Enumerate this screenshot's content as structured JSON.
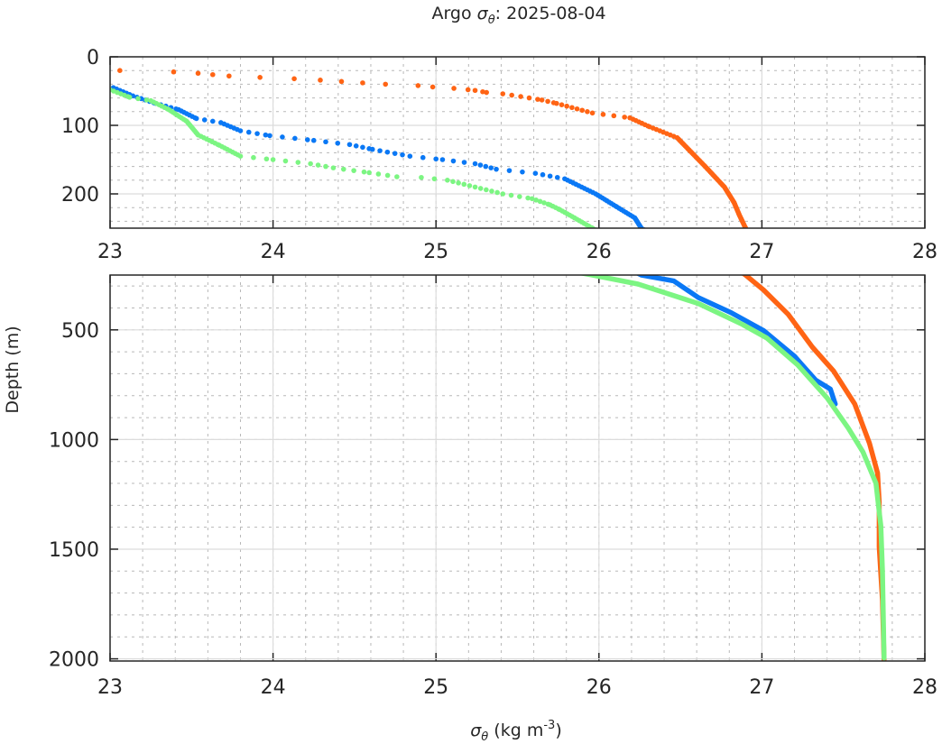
{
  "chart_data": {
    "type": "scatter",
    "title": {
      "prefix": "Argo ",
      "symbol": "σ",
      "subscript": "θ",
      "suffix": ": 2025-08-04"
    },
    "xlabel": {
      "symbol": "σ",
      "subscript": "θ",
      "units": " (kg m",
      "exp": "-3",
      "close": ")"
    },
    "ylabel": "Depth (m)",
    "grid": true,
    "minor_grid": true,
    "panels": [
      {
        "name": "upper",
        "xlim": [
          23,
          28
        ],
        "ylim": [
          0,
          250
        ],
        "y_reversed": true,
        "xticks": [
          23,
          24,
          25,
          26,
          27,
          28
        ],
        "yticks": [
          0,
          100,
          200
        ],
        "marker": "dots"
      },
      {
        "name": "lower",
        "xlim": [
          23,
          28
        ],
        "ylim": [
          250,
          2010
        ],
        "y_reversed": true,
        "xticks": [
          23,
          24,
          25,
          26,
          27,
          28
        ],
        "yticks": [
          500,
          1000,
          1500,
          2000
        ],
        "marker": "line"
      }
    ],
    "series": [
      {
        "color": "#ff6414",
        "points": [
          [
            23.06,
            20
          ],
          [
            23.39,
            22
          ],
          [
            23.54,
            24
          ],
          [
            23.63,
            26
          ],
          [
            23.73,
            28
          ],
          [
            23.92,
            30
          ],
          [
            24.13,
            32
          ],
          [
            24.29,
            34
          ],
          [
            24.42,
            36
          ],
          [
            24.55,
            38
          ],
          [
            24.69,
            40
          ],
          [
            24.89,
            42
          ],
          [
            24.98,
            44
          ],
          [
            25.11,
            46
          ],
          [
            25.24,
            49
          ],
          [
            25.31,
            52
          ],
          [
            25.41,
            54
          ],
          [
            25.52,
            58
          ],
          [
            25.65,
            63
          ],
          [
            25.74,
            68
          ],
          [
            25.96,
            82
          ],
          [
            26.19,
            89
          ],
          [
            26.31,
            102
          ],
          [
            26.48,
            118
          ],
          [
            26.57,
            140
          ],
          [
            26.66,
            162
          ],
          [
            26.77,
            190
          ],
          [
            26.83,
            213
          ],
          [
            26.86,
            230
          ],
          [
            26.9,
            250
          ],
          [
            27.01,
            318
          ],
          [
            27.16,
            428
          ],
          [
            27.31,
            579
          ],
          [
            27.44,
            688
          ],
          [
            27.57,
            838
          ],
          [
            27.66,
            1017
          ],
          [
            27.71,
            1153
          ],
          [
            27.72,
            1284
          ],
          [
            27.72,
            1489
          ],
          [
            27.74,
            1735
          ],
          [
            27.75,
            2010
          ]
        ]
      },
      {
        "color": "#0a78f5",
        "points": [
          [
            23.02,
            45
          ],
          [
            23.14,
            57
          ],
          [
            23.28,
            68
          ],
          [
            23.42,
            77
          ],
          [
            23.47,
            83
          ],
          [
            23.53,
            90
          ],
          [
            23.68,
            96
          ],
          [
            23.8,
            108
          ],
          [
            23.98,
            115
          ],
          [
            24.25,
            122
          ],
          [
            24.47,
            128
          ],
          [
            24.61,
            135
          ],
          [
            24.84,
            145
          ],
          [
            25.04,
            150
          ],
          [
            25.24,
            156
          ],
          [
            25.37,
            164
          ],
          [
            25.61,
            170
          ],
          [
            25.79,
            178
          ],
          [
            25.98,
            200
          ],
          [
            26.11,
            219
          ],
          [
            26.22,
            235
          ],
          [
            26.26,
            250
          ],
          [
            26.46,
            277
          ],
          [
            26.61,
            353
          ],
          [
            26.81,
            421
          ],
          [
            27.01,
            503
          ],
          [
            27.2,
            620
          ],
          [
            27.33,
            729
          ],
          [
            27.42,
            770
          ],
          [
            27.45,
            838
          ]
        ]
      },
      {
        "color": "#7cf582",
        "points": [
          [
            23.0,
            48
          ],
          [
            23.12,
            59
          ],
          [
            23.25,
            64
          ],
          [
            23.36,
            77
          ],
          [
            23.47,
            94
          ],
          [
            23.54,
            114
          ],
          [
            23.67,
            129
          ],
          [
            23.8,
            145
          ],
          [
            24.0,
            150
          ],
          [
            24.23,
            156
          ],
          [
            24.37,
            162
          ],
          [
            24.59,
            169
          ],
          [
            24.76,
            175
          ],
          [
            24.91,
            176
          ],
          [
            25.07,
            180
          ],
          [
            25.24,
            190
          ],
          [
            25.41,
            200
          ],
          [
            25.59,
            207
          ],
          [
            25.7,
            216
          ],
          [
            25.76,
            223
          ],
          [
            25.85,
            235
          ],
          [
            25.96,
            250
          ],
          [
            26.24,
            291
          ],
          [
            26.61,
            380
          ],
          [
            26.88,
            475
          ],
          [
            27.03,
            537
          ],
          [
            27.22,
            660
          ],
          [
            27.4,
            810
          ],
          [
            27.53,
            948
          ],
          [
            27.62,
            1057
          ],
          [
            27.7,
            1200
          ],
          [
            27.73,
            1393
          ],
          [
            27.74,
            1598
          ],
          [
            27.75,
            1997
          ]
        ]
      }
    ]
  }
}
